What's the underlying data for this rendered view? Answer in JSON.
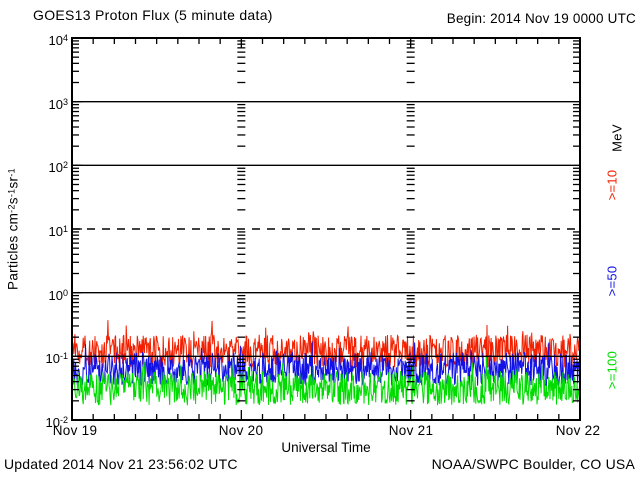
{
  "header": {
    "title": "GOES13 Proton Flux (5 minute data)",
    "begin_label": "Begin: 2014 Nov 19 0000 UTC"
  },
  "footer": {
    "updated": "Updated 2014 Nov 21 23:56:02 UTC",
    "source": "NOAA/SWPC Boulder, CO USA"
  },
  "chart_data": {
    "type": "line",
    "title": "GOES13 Proton Flux (5 minute data)",
    "xlabel": "Universal Time",
    "ylabel": "Particles cm-2 s-1 sr-1",
    "ylabel_parts": [
      [
        "Particles cm",
        "-2"
      ],
      [
        "s",
        "-1"
      ],
      [
        "sr",
        "-1"
      ]
    ],
    "x_categories": [
      "Nov 19",
      "Nov 20",
      "Nov 21",
      "Nov 22"
    ],
    "x_span_days": 3,
    "samples_per_day": 288,
    "y_scale": "log10",
    "ylim": [
      0.01,
      10000
    ],
    "ylim_exponents": [
      -2,
      4
    ],
    "y_tick_base": "10",
    "y_tick_exponents": [
      "4",
      "3",
      "2",
      "1",
      "0",
      "-1",
      "-2"
    ],
    "solid_gridline_exponents": [
      3,
      2,
      0,
      -1
    ],
    "dashed_gridline_exponents": [
      1
    ],
    "right_axis_unit": "MeV",
    "legend_position": "right",
    "grid": "decade lines with minor log ticks repeated at day boundaries",
    "series": [
      {
        "name": ">=10",
        "unit": "MeV",
        "color": "#f22000",
        "approx_mean_flux": 0.12,
        "approx_flux_range": [
          0.06,
          0.3
        ],
        "base_exponent": -0.92,
        "amp_exponent": 0.26,
        "spike_exponent": 0.3,
        "spike_probability": 0.05,
        "seed": 1101
      },
      {
        "name": ">=50",
        "unit": "MeV",
        "color": "#1212e6",
        "approx_mean_flux": 0.063,
        "approx_flux_range": [
          0.035,
          0.13
        ],
        "base_exponent": -1.2,
        "amp_exponent": 0.26,
        "spike_exponent": 0.25,
        "spike_probability": 0.05,
        "seed": 2202
      },
      {
        "name": ">=100",
        "unit": "MeV",
        "color": "#00dc00",
        "approx_mean_flux": 0.032,
        "approx_flux_range": [
          0.015,
          0.07
        ],
        "base_exponent": -1.5,
        "amp_exponent": 0.27,
        "spike_exponent": 0.25,
        "spike_probability": 0.05,
        "seed": 3303
      }
    ]
  }
}
